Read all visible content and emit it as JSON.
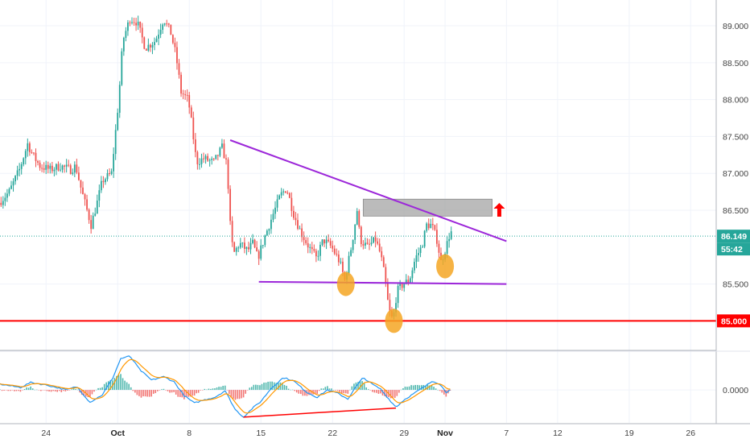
{
  "chart_data": [
    {
      "type": "candlestick",
      "title": "",
      "ylim": [
        84.6,
        89.35
      ],
      "price_axis": {
        "ticks": [
          {
            "value": 89.0,
            "label": "89.000"
          },
          {
            "value": 88.5,
            "label": "88.500"
          },
          {
            "value": 88.0,
            "label": "88.000"
          },
          {
            "value": 87.5,
            "label": "87.500"
          },
          {
            "value": 87.0,
            "label": "87.000"
          },
          {
            "value": 86.5,
            "label": "86.500"
          },
          {
            "value": 85.5,
            "label": "85.500"
          }
        ]
      },
      "time_axis": {
        "ticks": [
          {
            "day": 24,
            "label": "24",
            "bold": false
          },
          {
            "day": 31,
            "label": "Oct",
            "bold": true
          },
          {
            "day": 38,
            "label": "8",
            "bold": false
          },
          {
            "day": 45,
            "label": "15",
            "bold": false
          },
          {
            "day": 52,
            "label": "22",
            "bold": false
          },
          {
            "day": 59,
            "label": "29",
            "bold": false
          },
          {
            "day": 63,
            "label": "Nov",
            "bold": true
          },
          {
            "day": 69,
            "label": "7",
            "bold": false
          },
          {
            "day": 74,
            "label": "12",
            "bold": false
          },
          {
            "day": 81,
            "label": "19",
            "bold": false
          },
          {
            "day": 87,
            "label": "26",
            "bold": false
          }
        ],
        "xlim": [
          19.5,
          89.5
        ]
      },
      "price_path": [
        {
          "day": 19.5,
          "price": 86.6
        },
        {
          "day": 20.5,
          "price": 86.75
        },
        {
          "day": 21.5,
          "price": 87.05
        },
        {
          "day": 22.3,
          "price": 87.4
        },
        {
          "day": 22.8,
          "price": 87.25
        },
        {
          "day": 23.5,
          "price": 87.1
        },
        {
          "day": 24.5,
          "price": 87.05
        },
        {
          "day": 25.5,
          "price": 87.1
        },
        {
          "day": 26.5,
          "price": 87.05
        },
        {
          "day": 27.0,
          "price": 87.1
        },
        {
          "day": 27.6,
          "price": 86.75
        },
        {
          "day": 28.0,
          "price": 86.55
        },
        {
          "day": 28.5,
          "price": 86.3
        },
        {
          "day": 29.0,
          "price": 86.55
        },
        {
          "day": 29.6,
          "price": 86.9
        },
        {
          "day": 30.5,
          "price": 87.0
        },
        {
          "day": 31.2,
          "price": 88.0
        },
        {
          "day": 31.6,
          "price": 88.8
        },
        {
          "day": 32.3,
          "price": 89.1
        },
        {
          "day": 33.0,
          "price": 89.05
        },
        {
          "day": 33.8,
          "price": 88.7
        },
        {
          "day": 34.8,
          "price": 88.8
        },
        {
          "day": 35.6,
          "price": 89.1
        },
        {
          "day": 36.3,
          "price": 88.9
        },
        {
          "day": 36.8,
          "price": 88.6
        },
        {
          "day": 37.3,
          "price": 88.1
        },
        {
          "day": 38.0,
          "price": 88.0
        },
        {
          "day": 38.3,
          "price": 87.7
        },
        {
          "day": 38.8,
          "price": 87.15
        },
        {
          "day": 39.5,
          "price": 87.2
        },
        {
          "day": 40.5,
          "price": 87.15
        },
        {
          "day": 41.3,
          "price": 87.35
        },
        {
          "day": 41.8,
          "price": 87.1
        },
        {
          "day": 42.1,
          "price": 86.3
        },
        {
          "day": 42.4,
          "price": 85.9
        },
        {
          "day": 43.0,
          "price": 86.05
        },
        {
          "day": 43.8,
          "price": 85.95
        },
        {
          "day": 44.3,
          "price": 86.05
        },
        {
          "day": 44.8,
          "price": 85.85
        },
        {
          "day": 45.5,
          "price": 86.15
        },
        {
          "day": 46.3,
          "price": 86.45
        },
        {
          "day": 47.0,
          "price": 86.7
        },
        {
          "day": 47.6,
          "price": 86.8
        },
        {
          "day": 48.3,
          "price": 86.45
        },
        {
          "day": 49.0,
          "price": 86.2
        },
        {
          "day": 49.8,
          "price": 86.0
        },
        {
          "day": 50.5,
          "price": 85.85
        },
        {
          "day": 51.2,
          "price": 86.1
        },
        {
          "day": 52.0,
          "price": 86.0
        },
        {
          "day": 52.8,
          "price": 85.8
        },
        {
          "day": 53.3,
          "price": 85.55
        },
        {
          "day": 54.0,
          "price": 86.05
        },
        {
          "day": 54.5,
          "price": 86.5
        },
        {
          "day": 54.8,
          "price": 86.1
        },
        {
          "day": 55.5,
          "price": 86.0
        },
        {
          "day": 56.3,
          "price": 86.1
        },
        {
          "day": 56.8,
          "price": 85.9
        },
        {
          "day": 57.2,
          "price": 85.6
        },
        {
          "day": 57.6,
          "price": 85.15
        },
        {
          "day": 58.0,
          "price": 85.0
        },
        {
          "day": 58.4,
          "price": 85.4
        },
        {
          "day": 59.0,
          "price": 85.5
        },
        {
          "day": 59.6,
          "price": 85.55
        },
        {
          "day": 60.2,
          "price": 85.85
        },
        {
          "day": 60.8,
          "price": 86.0
        },
        {
          "day": 61.3,
          "price": 86.3
        },
        {
          "day": 61.8,
          "price": 86.3
        },
        {
          "day": 62.3,
          "price": 86.1
        },
        {
          "day": 62.7,
          "price": 85.8
        },
        {
          "day": 63.2,
          "price": 86.0
        },
        {
          "day": 63.6,
          "price": 86.2
        }
      ],
      "annotations": {
        "descending_trendline": [
          {
            "day": 42.0,
            "price": 87.45
          },
          {
            "day": 69.0,
            "price": 86.08
          }
        ],
        "support_line": [
          {
            "day": 44.8,
            "price": 85.53
          },
          {
            "day": 69.0,
            "price": 85.5
          }
        ],
        "horizontal_level": {
          "price": 85.0,
          "label": "85.000",
          "color": "#ff0000"
        },
        "resistance_zone": {
          "day_from": 55.0,
          "day_to": 67.6,
          "price_from": 86.42,
          "price_to": 86.65
        },
        "current_price": {
          "price": 86.149,
          "label": "86.149",
          "countdown": "55:42",
          "color": "#26a69a"
        },
        "highlight_circles": [
          {
            "day": 53.3,
            "price": 85.5
          },
          {
            "day": 58.0,
            "price": 85.0
          },
          {
            "day": 63.0,
            "price": 85.74
          }
        ],
        "up_arrow": {
          "day": 68.3,
          "price": 86.5,
          "color": "#ff0000"
        },
        "trendline_color": "#9c27d9",
        "zone_color": "#9e9e9e",
        "circle_color": "#f5a623"
      }
    },
    {
      "type": "macd",
      "zero_label": "0.0000",
      "ylim": [
        -2.0,
        2.3
      ],
      "macd_path": [
        {
          "day": 19.5,
          "value": 0.35
        },
        {
          "day": 21.5,
          "value": 0.15
        },
        {
          "day": 22.5,
          "value": 0.45
        },
        {
          "day": 24.0,
          "value": 0.3
        },
        {
          "day": 26.0,
          "value": 0.0
        },
        {
          "day": 27.0,
          "value": 0.2
        },
        {
          "day": 28.3,
          "value": -0.75
        },
        {
          "day": 29.5,
          "value": -0.3
        },
        {
          "day": 30.5,
          "value": 0.7
        },
        {
          "day": 31.3,
          "value": 1.9
        },
        {
          "day": 32.2,
          "value": 2.05
        },
        {
          "day": 33.2,
          "value": 1.2
        },
        {
          "day": 34.3,
          "value": 0.6
        },
        {
          "day": 35.5,
          "value": 0.8
        },
        {
          "day": 36.5,
          "value": 0.5
        },
        {
          "day": 37.5,
          "value": -0.35
        },
        {
          "day": 38.5,
          "value": -0.8
        },
        {
          "day": 39.5,
          "value": -0.6
        },
        {
          "day": 40.5,
          "value": -0.45
        },
        {
          "day": 41.5,
          "value": -0.05
        },
        {
          "day": 42.5,
          "value": -1.2
        },
        {
          "day": 43.3,
          "value": -1.65
        },
        {
          "day": 44.2,
          "value": -1.1
        },
        {
          "day": 45.0,
          "value": -0.7
        },
        {
          "day": 46.0,
          "value": 0.1
        },
        {
          "day": 47.2,
          "value": 0.75
        },
        {
          "day": 48.2,
          "value": 0.55
        },
        {
          "day": 49.5,
          "value": -0.15
        },
        {
          "day": 50.5,
          "value": -0.45
        },
        {
          "day": 51.5,
          "value": 0.0
        },
        {
          "day": 52.5,
          "value": -0.2
        },
        {
          "day": 53.5,
          "value": -0.55
        },
        {
          "day": 54.3,
          "value": 0.2
        },
        {
          "day": 55.0,
          "value": 0.75
        },
        {
          "day": 56.0,
          "value": 0.3
        },
        {
          "day": 56.7,
          "value": 0.05
        },
        {
          "day": 57.5,
          "value": -0.55
        },
        {
          "day": 58.2,
          "value": -1.05
        },
        {
          "day": 59.0,
          "value": -0.6
        },
        {
          "day": 60.0,
          "value": -0.2
        },
        {
          "day": 61.0,
          "value": 0.2
        },
        {
          "day": 61.8,
          "value": 0.55
        },
        {
          "day": 62.5,
          "value": 0.35
        },
        {
          "day": 63.1,
          "value": -0.15
        },
        {
          "day": 63.6,
          "value": 0.1
        }
      ],
      "macd_color": "#2196f3",
      "signal_color": "#ff9800",
      "hist_pos_color": "#26a69a",
      "hist_neg_color": "#ef5350",
      "divergence_line": [
        {
          "day": 43.3,
          "value": -1.65
        },
        {
          "day": 58.2,
          "value": -1.1
        }
      ],
      "divergence_color": "#ff0000"
    }
  ]
}
